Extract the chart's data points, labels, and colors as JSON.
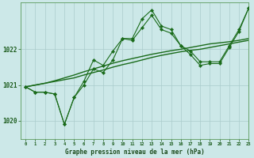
{
  "title": "Graphe pression niveau de la mer (hPa)",
  "background_color": "#cce8e8",
  "grid_color": "#aacccc",
  "line_color": "#1a6b1a",
  "xlim": [
    -0.5,
    23
  ],
  "ylim": [
    1019.5,
    1023.3
  ],
  "yticks": [
    1020,
    1021,
    1022
  ],
  "xticks": [
    0,
    1,
    2,
    3,
    4,
    5,
    6,
    7,
    8,
    9,
    10,
    11,
    12,
    13,
    14,
    15,
    16,
    17,
    18,
    19,
    20,
    21,
    22,
    23
  ],
  "series_smooth": [
    1020.95,
    1021.0,
    1021.05,
    1021.1,
    1021.15,
    1021.2,
    1021.28,
    1021.35,
    1021.42,
    1021.5,
    1021.57,
    1021.63,
    1021.7,
    1021.77,
    1021.83,
    1021.88,
    1021.93,
    1021.97,
    1022.0,
    1022.05,
    1022.1,
    1022.15,
    1022.2,
    1022.25
  ],
  "series_smooth2": [
    1020.95,
    1021.0,
    1021.05,
    1021.12,
    1021.2,
    1021.28,
    1021.37,
    1021.45,
    1021.53,
    1021.61,
    1021.68,
    1021.74,
    1021.8,
    1021.86,
    1021.91,
    1021.96,
    1022.0,
    1022.05,
    1022.1,
    1022.15,
    1022.18,
    1022.21,
    1022.25,
    1022.3
  ],
  "series_zigzag1": [
    1020.95,
    1020.8,
    1020.8,
    1020.75,
    1019.9,
    1020.65,
    1021.1,
    1021.7,
    1021.55,
    1021.95,
    1022.3,
    1022.3,
    1022.85,
    1023.1,
    1022.65,
    1022.55,
    1022.1,
    1021.95,
    1021.65,
    1021.65,
    1021.65,
    1022.1,
    1022.55,
    1023.15
  ],
  "series_zigzag2": [
    1020.95,
    1020.8,
    1020.8,
    1020.75,
    1019.9,
    1020.65,
    1021.0,
    1021.45,
    1021.35,
    1021.7,
    1022.3,
    1022.25,
    1022.6,
    1022.95,
    1022.55,
    1022.45,
    1022.1,
    1021.85,
    1021.55,
    1021.6,
    1021.6,
    1022.05,
    1022.5,
    1023.15
  ]
}
